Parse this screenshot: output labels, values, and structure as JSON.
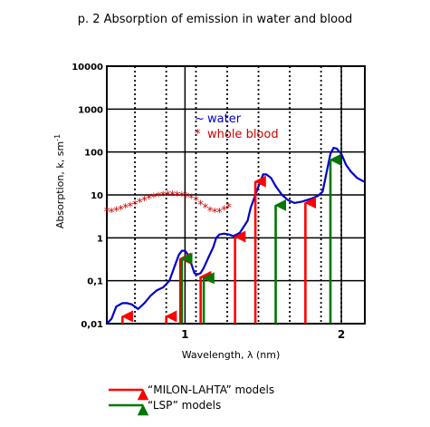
{
  "title": "p. 2 Absorption of emission in water and blood",
  "chart_data": {
    "type": "line",
    "ylabel_text": "Absorption, k, sm",
    "ylabel_sup": "-1",
    "xlabel": "Wavelength, λ (nm)",
    "yscale": "log",
    "ylim": [
      0.01,
      10000
    ],
    "xlim": [
      0.5,
      2.15
    ],
    "y_ticks": [
      "0,01",
      "0,1",
      "1",
      "10",
      "100",
      "1000",
      "10000"
    ],
    "y_tick_values": [
      0.01,
      0.1,
      1,
      10,
      100,
      1000,
      10000
    ],
    "x_ticks": [
      "1",
      "2"
    ],
    "x_tick_values": [
      1,
      2
    ],
    "major_vlines": [
      1,
      2
    ],
    "dotted_vlines": [
      0.68,
      0.88,
      1.07,
      1.27,
      1.47,
      1.67,
      1.87,
      2.0
    ],
    "series": [
      {
        "name": "water",
        "color": "#0000cc",
        "marker": "~",
        "x": [
          0.5,
          0.53,
          0.56,
          0.6,
          0.63,
          0.66,
          0.7,
          0.74,
          0.78,
          0.82,
          0.86,
          0.9,
          0.93,
          0.96,
          0.98,
          1.0,
          1.02,
          1.04,
          1.06,
          1.08,
          1.1,
          1.12,
          1.15,
          1.18,
          1.2,
          1.22,
          1.25,
          1.28,
          1.31,
          1.35,
          1.4,
          1.42,
          1.45,
          1.48,
          1.5,
          1.52,
          1.55,
          1.58,
          1.62,
          1.66,
          1.7,
          1.75,
          1.8,
          1.85,
          1.88,
          1.91,
          1.93,
          1.95,
          1.97,
          2.0,
          2.03,
          2.06,
          2.1,
          2.15
        ],
        "y": [
          0.01,
          0.013,
          0.025,
          0.03,
          0.03,
          0.028,
          0.022,
          0.03,
          0.045,
          0.06,
          0.07,
          0.1,
          0.2,
          0.4,
          0.5,
          0.5,
          0.4,
          0.25,
          0.15,
          0.14,
          0.15,
          0.2,
          0.35,
          0.6,
          1.0,
          1.2,
          1.25,
          1.2,
          1.1,
          1.3,
          2.5,
          5.0,
          10.0,
          20.0,
          30.0,
          30.0,
          25.0,
          16.0,
          10.0,
          7.5,
          6.5,
          7.0,
          8.0,
          9.5,
          12.0,
          40.0,
          90.0,
          125.0,
          120.0,
          90.0,
          50.0,
          35.0,
          25.0,
          20.0
        ]
      },
      {
        "name": "whole blood",
        "color": "#cc0000",
        "marker": "*",
        "x": [
          0.5,
          0.53,
          0.56,
          0.59,
          0.62,
          0.65,
          0.68,
          0.71,
          0.74,
          0.77,
          0.8,
          0.83,
          0.86,
          0.89,
          0.92,
          0.95,
          0.98,
          1.01,
          1.04,
          1.07,
          1.1,
          1.13,
          1.16,
          1.19,
          1.22,
          1.25,
          1.28
        ],
        "y": [
          4.2,
          4.0,
          4.3,
          4.6,
          5.0,
          5.5,
          6.0,
          6.8,
          7.5,
          8.2,
          8.8,
          9.2,
          9.7,
          10.0,
          10.0,
          9.8,
          9.5,
          9.0,
          8.5,
          7.5,
          6.0,
          5.0,
          4.3,
          4.0,
          4.0,
          4.5,
          5.2
        ]
      }
    ],
    "arrow_groups": [
      {
        "label": "“MILON-LAHTA” models",
        "color": "#ff0000",
        "arrows": [
          [
            0.6,
            0.018
          ],
          [
            0.88,
            0.018
          ],
          [
            0.97,
            0.4
          ],
          [
            1.1,
            0.15
          ],
          [
            1.32,
            1.3
          ],
          [
            1.45,
            25.0
          ],
          [
            1.77,
            8.0
          ]
        ]
      },
      {
        "label": "“LSP” models",
        "color": "#007700",
        "arrows": [
          [
            0.98,
            0.4
          ],
          [
            1.12,
            0.14
          ],
          [
            1.58,
            7.0
          ],
          [
            1.93,
            80.0
          ]
        ]
      }
    ]
  }
}
